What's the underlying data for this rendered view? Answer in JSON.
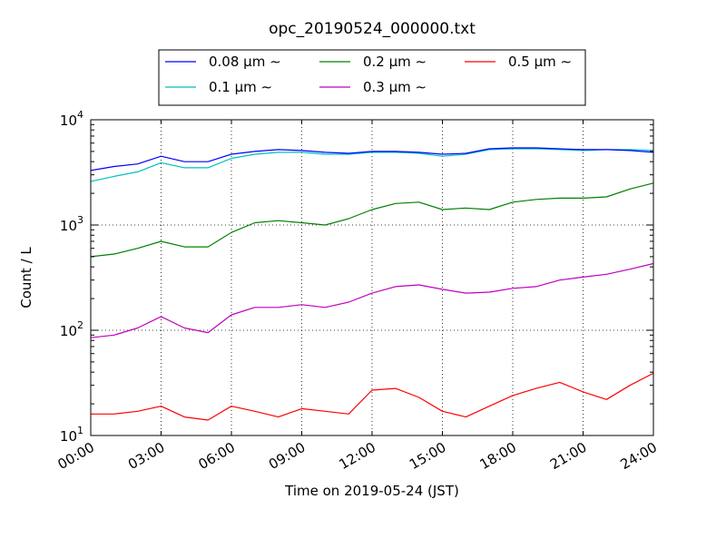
{
  "chart_data": {
    "type": "line",
    "title": "opc_20190524_000000.txt",
    "xlabel": "Time on 2019-05-24 (JST)",
    "ylabel": "Count / L",
    "y_scale": "log",
    "ylim": [
      10,
      10000
    ],
    "xlim": [
      "00:00",
      "24:00"
    ],
    "grid": true,
    "legend_placement": "top-center, above plot",
    "x_ticks": [
      "00:00",
      "03:00",
      "06:00",
      "09:00",
      "12:00",
      "15:00",
      "18:00",
      "21:00",
      "24:00"
    ],
    "y_ticks": [
      {
        "value": 10,
        "base": "10",
        "exp": "1"
      },
      {
        "value": 100,
        "base": "10",
        "exp": "2"
      },
      {
        "value": 1000,
        "base": "10",
        "exp": "3"
      },
      {
        "value": 10000,
        "base": "10",
        "exp": "4"
      }
    ],
    "x_hours": [
      0,
      1,
      2,
      3,
      4,
      5,
      6,
      7,
      8,
      9,
      10,
      11,
      12,
      13,
      14,
      15,
      16,
      17,
      18,
      19,
      20,
      21,
      22,
      23,
      24
    ],
    "series": [
      {
        "name": "0.08 μm ∼",
        "color": "#0000ff",
        "values": [
          3300,
          3600,
          3800,
          4500,
          4000,
          4000,
          4700,
          5000,
          5200,
          5100,
          4900,
          4800,
          5000,
          5000,
          4900,
          4700,
          4800,
          5300,
          5400,
          5400,
          5300,
          5200,
          5200,
          5100,
          4900
        ]
      },
      {
        "name": "0.1 μm ∼",
        "color": "#00bfbf",
        "values": [
          2600,
          2900,
          3200,
          3900,
          3500,
          3500,
          4300,
          4700,
          4900,
          4900,
          4700,
          4700,
          4900,
          4900,
          4800,
          4500,
          4700,
          5200,
          5300,
          5300,
          5200,
          5100,
          5200,
          5200,
          5100
        ]
      },
      {
        "name": "0.2 μm ∼",
        "color": "#008000",
        "values": [
          500,
          530,
          600,
          700,
          620,
          620,
          850,
          1050,
          1100,
          1050,
          1000,
          1150,
          1400,
          1600,
          1650,
          1400,
          1450,
          1400,
          1650,
          1750,
          1800,
          1800,
          1850,
          2200,
          2500
        ]
      },
      {
        "name": "0.3 μm ∼",
        "color": "#bf00bf",
        "values": [
          85,
          90,
          105,
          135,
          105,
          95,
          140,
          165,
          165,
          175,
          165,
          185,
          225,
          260,
          270,
          245,
          225,
          230,
          250,
          260,
          300,
          320,
          340,
          380,
          430
        ]
      },
      {
        "name": "0.5 μm ∼",
        "color": "#ff0000",
        "values": [
          16,
          16,
          17,
          19,
          15,
          14,
          19,
          17,
          15,
          18,
          17,
          16,
          27,
          28,
          23,
          17,
          15,
          19,
          24,
          28,
          32,
          26,
          22,
          30,
          39
        ]
      }
    ]
  }
}
